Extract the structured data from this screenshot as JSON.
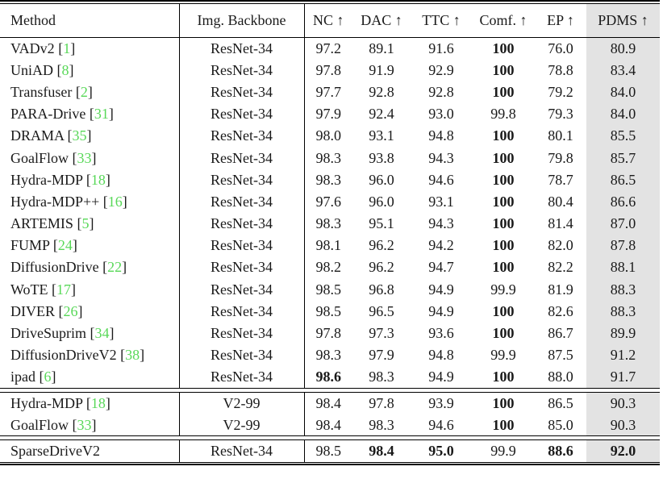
{
  "colors": {
    "citation_green": "#58d858",
    "pdms_column_bg": "#e3e3e3",
    "rule_color": "#000000",
    "text_color": "#1a1a1a"
  },
  "table": {
    "columns": [
      {
        "key": "method",
        "label": "Method"
      },
      {
        "key": "backbone",
        "label": "Img. Backbone"
      },
      {
        "key": "nc",
        "label": "NC ↑"
      },
      {
        "key": "dac",
        "label": "DAC ↑"
      },
      {
        "key": "ttc",
        "label": "TTC ↑"
      },
      {
        "key": "comf",
        "label": "Comf. ↑"
      },
      {
        "key": "ep",
        "label": "EP ↑"
      },
      {
        "key": "pdms",
        "label": "PDMS ↑"
      }
    ],
    "sections": [
      {
        "rows": [
          {
            "method": "VADv2",
            "cite": "1",
            "backbone": "ResNet-34",
            "values": [
              "97.2",
              "89.1",
              "91.6",
              "100",
              "76.0",
              "80.9"
            ],
            "bold": [
              3
            ]
          },
          {
            "method": "UniAD",
            "cite": "8",
            "backbone": "ResNet-34",
            "values": [
              "97.8",
              "91.9",
              "92.9",
              "100",
              "78.8",
              "83.4"
            ],
            "bold": [
              3
            ]
          },
          {
            "method": "Transfuser",
            "cite": "2",
            "backbone": "ResNet-34",
            "values": [
              "97.7",
              "92.8",
              "92.8",
              "100",
              "79.2",
              "84.0"
            ],
            "bold": [
              3
            ]
          },
          {
            "method": "PARA-Drive",
            "cite": "31",
            "backbone": "ResNet-34",
            "values": [
              "97.9",
              "92.4",
              "93.0",
              "99.8",
              "79.3",
              "84.0"
            ],
            "bold": []
          },
          {
            "method": "DRAMA",
            "cite": "35",
            "backbone": "ResNet-34",
            "values": [
              "98.0",
              "93.1",
              "94.8",
              "100",
              "80.1",
              "85.5"
            ],
            "bold": [
              3
            ]
          },
          {
            "method": "GoalFlow",
            "cite": "33",
            "backbone": "ResNet-34",
            "values": [
              "98.3",
              "93.8",
              "94.3",
              "100",
              "79.8",
              "85.7"
            ],
            "bold": [
              3
            ]
          },
          {
            "method": "Hydra-MDP",
            "cite": "18",
            "backbone": "ResNet-34",
            "values": [
              "98.3",
              "96.0",
              "94.6",
              "100",
              "78.7",
              "86.5"
            ],
            "bold": [
              3
            ]
          },
          {
            "method": "Hydra-MDP++",
            "cite": "16",
            "backbone": "ResNet-34",
            "values": [
              "97.6",
              "96.0",
              "93.1",
              "100",
              "80.4",
              "86.6"
            ],
            "bold": [
              3
            ]
          },
          {
            "method": "ARTEMIS",
            "cite": "5",
            "backbone": "ResNet-34",
            "values": [
              "98.3",
              "95.1",
              "94.3",
              "100",
              "81.4",
              "87.0"
            ],
            "bold": [
              3
            ]
          },
          {
            "method": "FUMP",
            "cite": "24",
            "backbone": "ResNet-34",
            "values": [
              "98.1",
              "96.2",
              "94.2",
              "100",
              "82.0",
              "87.8"
            ],
            "bold": [
              3
            ]
          },
          {
            "method": "DiffusionDrive",
            "cite": "22",
            "backbone": "ResNet-34",
            "values": [
              "98.2",
              "96.2",
              "94.7",
              "100",
              "82.2",
              "88.1"
            ],
            "bold": [
              3
            ]
          },
          {
            "method": "WoTE",
            "cite": "17",
            "backbone": "ResNet-34",
            "values": [
              "98.5",
              "96.8",
              "94.9",
              "99.9",
              "81.9",
              "88.3"
            ],
            "bold": []
          },
          {
            "method": "DIVER",
            "cite": "26",
            "backbone": "ResNet-34",
            "values": [
              "98.5",
              "96.5",
              "94.9",
              "100",
              "82.6",
              "88.3"
            ],
            "bold": [
              3
            ]
          },
          {
            "method": "DriveSuprim",
            "cite": "34",
            "backbone": "ResNet-34",
            "values": [
              "97.8",
              "97.3",
              "93.6",
              "100",
              "86.7",
              "89.9"
            ],
            "bold": [
              3
            ]
          },
          {
            "method": "DiffusionDriveV2",
            "cite": "38",
            "backbone": "ResNet-34",
            "values": [
              "98.3",
              "97.9",
              "94.8",
              "99.9",
              "87.5",
              "91.2"
            ],
            "bold": []
          },
          {
            "method": "ipad",
            "cite": "6",
            "backbone": "ResNet-34",
            "values": [
              "98.6",
              "98.3",
              "94.9",
              "100",
              "88.0",
              "91.7"
            ],
            "bold": [
              0,
              3
            ]
          }
        ]
      },
      {
        "rows": [
          {
            "method": "Hydra-MDP",
            "cite": "18",
            "backbone": "V2-99",
            "values": [
              "98.4",
              "97.8",
              "93.9",
              "100",
              "86.5",
              "90.3"
            ],
            "bold": [
              3
            ]
          },
          {
            "method": "GoalFlow",
            "cite": "33",
            "backbone": "V2-99",
            "values": [
              "98.4",
              "98.3",
              "94.6",
              "100",
              "85.0",
              "90.3"
            ],
            "bold": [
              3
            ]
          }
        ]
      },
      {
        "rows": [
          {
            "method": "SparseDriveV2",
            "cite": null,
            "backbone": "ResNet-34",
            "values": [
              "98.5",
              "98.4",
              "95.0",
              "99.9",
              "88.6",
              "92.0"
            ],
            "bold": [
              1,
              2,
              4,
              5
            ]
          }
        ]
      }
    ]
  }
}
